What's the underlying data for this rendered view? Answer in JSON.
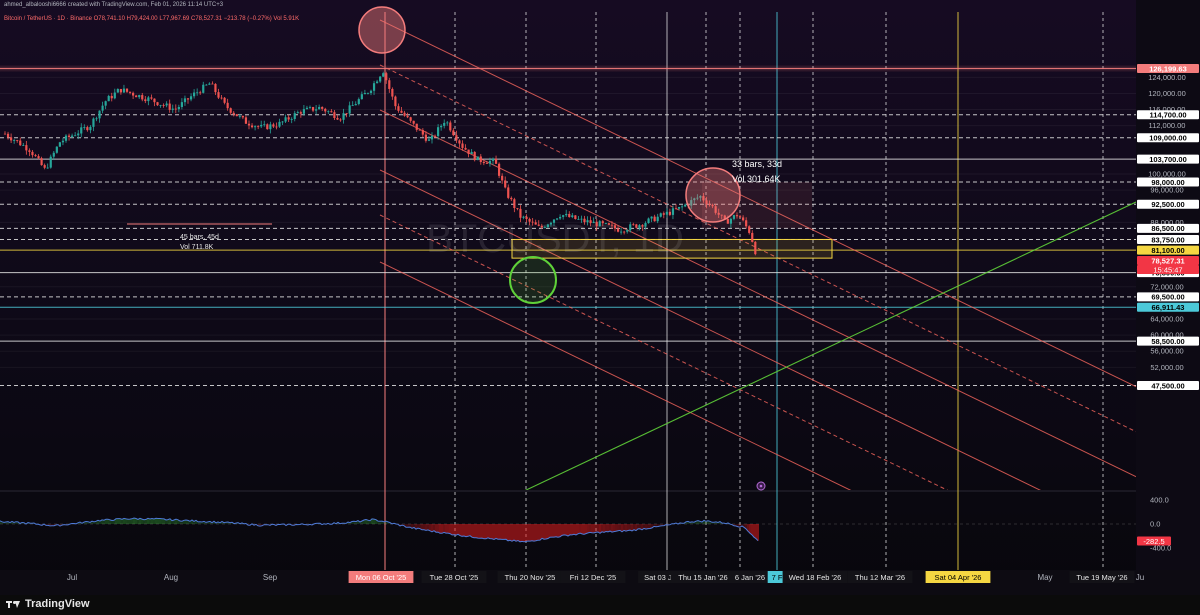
{
  "header": {
    "line1": "ahmed_albalooshi6666 created with TradingView.com, Feb 01, 2026 11:14 UTC+3",
    "line2": "Bitcoin / TetherUS · 1D · Binance  O78,741.10 H79,424.00 L77,967.69 C78,527.31 −213.78 (−0.27%)  Vol 5.91K"
  },
  "watermark": "BTCUSDT, 1D",
  "footer": {
    "brand": "TradingView"
  },
  "colors": {
    "background": "#0a0810",
    "up": "#26a69a",
    "down": "#ef5350",
    "channel": "#f7665e",
    "yellow": "#f5d742",
    "cyan": "#4cc9d9",
    "green_line": "#5fd139",
    "white_level": "#e6e6e6"
  },
  "chart_data": [
    {
      "type": "candlestick",
      "title": "Bitcoin / TetherUS · 1D · Binance",
      "ylim": [
        44000,
        127500
      ],
      "y_axis_ticks": [
        124000,
        120000,
        116000,
        112000,
        100000,
        96000,
        88000,
        72000,
        64000,
        60000,
        56000,
        52000
      ],
      "x_time_labels": [
        "Jul",
        "Aug",
        "Sep",
        "May",
        "Ju"
      ],
      "x_highlight_labels": [
        {
          "label": "Mon 06 Oct '25",
          "style": "red"
        },
        {
          "label": "Tue 28 Oct '25",
          "style": "white"
        },
        {
          "label": "Thu 20 Nov '25",
          "style": "white"
        },
        {
          "label": "Fri 12 Dec '25",
          "style": "white"
        },
        {
          "label": "Sat 03 Ja",
          "style": "white"
        },
        {
          "label": "Thu 15 Jan '26",
          "style": "white"
        },
        {
          "label": "6 Jan '26",
          "style": "white"
        },
        {
          "label": "7 F",
          "style": "cyan"
        },
        {
          "label": "Wed 18 Feb '26",
          "style": "white"
        },
        {
          "label": "Thu 12 Mar '26",
          "style": "white"
        },
        {
          "label": "Sat 04 Apr '26",
          "style": "yellow"
        },
        {
          "label": "Tue 19 May '26",
          "style": "white"
        }
      ],
      "price_levels": [
        {
          "value": 126199.63,
          "label": "126,199.63",
          "style": "red"
        },
        {
          "value": 114700,
          "label": "114,700.00",
          "style": "white"
        },
        {
          "value": 109000,
          "label": "109,000.00",
          "style": "white"
        },
        {
          "value": 103700,
          "label": "103,700.00",
          "style": "white"
        },
        {
          "value": 98000,
          "label": "98,000.00",
          "style": "white"
        },
        {
          "value": 92500,
          "label": "92,500.00",
          "style": "white"
        },
        {
          "value": 86500,
          "label": "86,500.00",
          "style": "white"
        },
        {
          "value": 83750,
          "label": "83,750.00",
          "style": "white"
        },
        {
          "value": 81100,
          "label": "81,100.00",
          "style": "yellow"
        },
        {
          "value": 78527.31,
          "label": "78,527.31",
          "style": "current"
        },
        {
          "value": 75500,
          "label": "75,500.00",
          "style": "white"
        },
        {
          "value": 69500,
          "label": "69,500.00",
          "style": "white"
        },
        {
          "value": 66911.43,
          "label": "66,911.43",
          "style": "cyan"
        },
        {
          "value": 58500,
          "label": "58,500.00",
          "style": "white"
        },
        {
          "value": 47500,
          "label": "47,500.00",
          "style": "white"
        }
      ],
      "countdown": "15:45:47",
      "measurements": [
        {
          "bars": "45 bars, 45d",
          "vol": "Vol 711.8K"
        },
        {
          "bars": "33 bars, 33d",
          "vol": "Vol 301.64K"
        }
      ]
    },
    {
      "type": "area",
      "title": "",
      "ylim": [
        -480,
        480
      ],
      "y_axis_ticks": [
        400.0,
        0.0,
        -400.0
      ],
      "current_value": -282.5,
      "current_label": "-282.5"
    }
  ]
}
